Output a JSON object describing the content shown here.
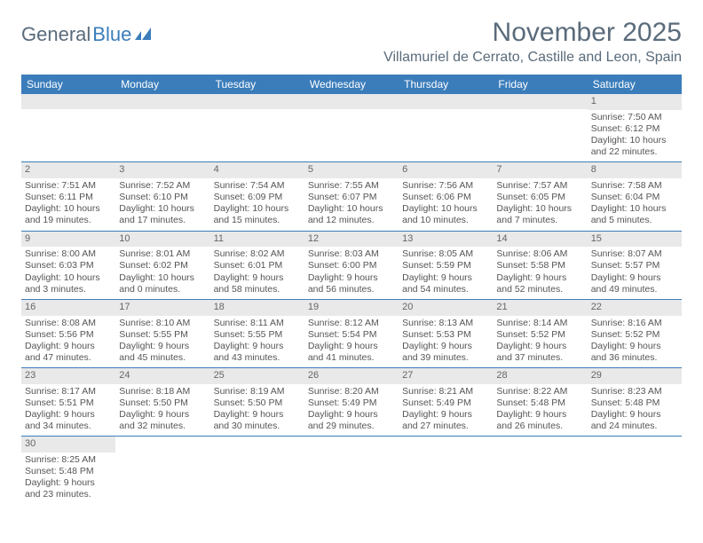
{
  "brand": {
    "part1": "General",
    "part2": "Blue"
  },
  "title": "November 2025",
  "location": "Villamuriel de Cerrato, Castille and Leon, Spain",
  "colors": {
    "header_bg": "#3b7dbb",
    "header_text": "#ffffff",
    "daynum_bg": "#e9e9e9",
    "rule": "#3b7dbb",
    "body_text": "#555555",
    "title_text": "#5a6b7b"
  },
  "weekdays": [
    "Sunday",
    "Monday",
    "Tuesday",
    "Wednesday",
    "Thursday",
    "Friday",
    "Saturday"
  ],
  "weeks": [
    [
      {
        "n": "",
        "lines": [
          "",
          "",
          "",
          ""
        ]
      },
      {
        "n": "",
        "lines": [
          "",
          "",
          "",
          ""
        ]
      },
      {
        "n": "",
        "lines": [
          "",
          "",
          "",
          ""
        ]
      },
      {
        "n": "",
        "lines": [
          "",
          "",
          "",
          ""
        ]
      },
      {
        "n": "",
        "lines": [
          "",
          "",
          "",
          ""
        ]
      },
      {
        "n": "",
        "lines": [
          "",
          "",
          "",
          ""
        ]
      },
      {
        "n": "1",
        "lines": [
          "Sunrise: 7:50 AM",
          "Sunset: 6:12 PM",
          "Daylight: 10 hours",
          "and 22 minutes."
        ]
      }
    ],
    [
      {
        "n": "2",
        "lines": [
          "Sunrise: 7:51 AM",
          "Sunset: 6:11 PM",
          "Daylight: 10 hours",
          "and 19 minutes."
        ]
      },
      {
        "n": "3",
        "lines": [
          "Sunrise: 7:52 AM",
          "Sunset: 6:10 PM",
          "Daylight: 10 hours",
          "and 17 minutes."
        ]
      },
      {
        "n": "4",
        "lines": [
          "Sunrise: 7:54 AM",
          "Sunset: 6:09 PM",
          "Daylight: 10 hours",
          "and 15 minutes."
        ]
      },
      {
        "n": "5",
        "lines": [
          "Sunrise: 7:55 AM",
          "Sunset: 6:07 PM",
          "Daylight: 10 hours",
          "and 12 minutes."
        ]
      },
      {
        "n": "6",
        "lines": [
          "Sunrise: 7:56 AM",
          "Sunset: 6:06 PM",
          "Daylight: 10 hours",
          "and 10 minutes."
        ]
      },
      {
        "n": "7",
        "lines": [
          "Sunrise: 7:57 AM",
          "Sunset: 6:05 PM",
          "Daylight: 10 hours",
          "and 7 minutes."
        ]
      },
      {
        "n": "8",
        "lines": [
          "Sunrise: 7:58 AM",
          "Sunset: 6:04 PM",
          "Daylight: 10 hours",
          "and 5 minutes."
        ]
      }
    ],
    [
      {
        "n": "9",
        "lines": [
          "Sunrise: 8:00 AM",
          "Sunset: 6:03 PM",
          "Daylight: 10 hours",
          "and 3 minutes."
        ]
      },
      {
        "n": "10",
        "lines": [
          "Sunrise: 8:01 AM",
          "Sunset: 6:02 PM",
          "Daylight: 10 hours",
          "and 0 minutes."
        ]
      },
      {
        "n": "11",
        "lines": [
          "Sunrise: 8:02 AM",
          "Sunset: 6:01 PM",
          "Daylight: 9 hours",
          "and 58 minutes."
        ]
      },
      {
        "n": "12",
        "lines": [
          "Sunrise: 8:03 AM",
          "Sunset: 6:00 PM",
          "Daylight: 9 hours",
          "and 56 minutes."
        ]
      },
      {
        "n": "13",
        "lines": [
          "Sunrise: 8:05 AM",
          "Sunset: 5:59 PM",
          "Daylight: 9 hours",
          "and 54 minutes."
        ]
      },
      {
        "n": "14",
        "lines": [
          "Sunrise: 8:06 AM",
          "Sunset: 5:58 PM",
          "Daylight: 9 hours",
          "and 52 minutes."
        ]
      },
      {
        "n": "15",
        "lines": [
          "Sunrise: 8:07 AM",
          "Sunset: 5:57 PM",
          "Daylight: 9 hours",
          "and 49 minutes."
        ]
      }
    ],
    [
      {
        "n": "16",
        "lines": [
          "Sunrise: 8:08 AM",
          "Sunset: 5:56 PM",
          "Daylight: 9 hours",
          "and 47 minutes."
        ]
      },
      {
        "n": "17",
        "lines": [
          "Sunrise: 8:10 AM",
          "Sunset: 5:55 PM",
          "Daylight: 9 hours",
          "and 45 minutes."
        ]
      },
      {
        "n": "18",
        "lines": [
          "Sunrise: 8:11 AM",
          "Sunset: 5:55 PM",
          "Daylight: 9 hours",
          "and 43 minutes."
        ]
      },
      {
        "n": "19",
        "lines": [
          "Sunrise: 8:12 AM",
          "Sunset: 5:54 PM",
          "Daylight: 9 hours",
          "and 41 minutes."
        ]
      },
      {
        "n": "20",
        "lines": [
          "Sunrise: 8:13 AM",
          "Sunset: 5:53 PM",
          "Daylight: 9 hours",
          "and 39 minutes."
        ]
      },
      {
        "n": "21",
        "lines": [
          "Sunrise: 8:14 AM",
          "Sunset: 5:52 PM",
          "Daylight: 9 hours",
          "and 37 minutes."
        ]
      },
      {
        "n": "22",
        "lines": [
          "Sunrise: 8:16 AM",
          "Sunset: 5:52 PM",
          "Daylight: 9 hours",
          "and 36 minutes."
        ]
      }
    ],
    [
      {
        "n": "23",
        "lines": [
          "Sunrise: 8:17 AM",
          "Sunset: 5:51 PM",
          "Daylight: 9 hours",
          "and 34 minutes."
        ]
      },
      {
        "n": "24",
        "lines": [
          "Sunrise: 8:18 AM",
          "Sunset: 5:50 PM",
          "Daylight: 9 hours",
          "and 32 minutes."
        ]
      },
      {
        "n": "25",
        "lines": [
          "Sunrise: 8:19 AM",
          "Sunset: 5:50 PM",
          "Daylight: 9 hours",
          "and 30 minutes."
        ]
      },
      {
        "n": "26",
        "lines": [
          "Sunrise: 8:20 AM",
          "Sunset: 5:49 PM",
          "Daylight: 9 hours",
          "and 29 minutes."
        ]
      },
      {
        "n": "27",
        "lines": [
          "Sunrise: 8:21 AM",
          "Sunset: 5:49 PM",
          "Daylight: 9 hours",
          "and 27 minutes."
        ]
      },
      {
        "n": "28",
        "lines": [
          "Sunrise: 8:22 AM",
          "Sunset: 5:48 PM",
          "Daylight: 9 hours",
          "and 26 minutes."
        ]
      },
      {
        "n": "29",
        "lines": [
          "Sunrise: 8:23 AM",
          "Sunset: 5:48 PM",
          "Daylight: 9 hours",
          "and 24 minutes."
        ]
      }
    ],
    [
      {
        "n": "30",
        "lines": [
          "Sunrise: 8:25 AM",
          "Sunset: 5:48 PM",
          "Daylight: 9 hours",
          "and 23 minutes."
        ]
      },
      {
        "n": "",
        "lines": [
          "",
          "",
          "",
          ""
        ]
      },
      {
        "n": "",
        "lines": [
          "",
          "",
          "",
          ""
        ]
      },
      {
        "n": "",
        "lines": [
          "",
          "",
          "",
          ""
        ]
      },
      {
        "n": "",
        "lines": [
          "",
          "",
          "",
          ""
        ]
      },
      {
        "n": "",
        "lines": [
          "",
          "",
          "",
          ""
        ]
      },
      {
        "n": "",
        "lines": [
          "",
          "",
          "",
          ""
        ]
      }
    ]
  ]
}
